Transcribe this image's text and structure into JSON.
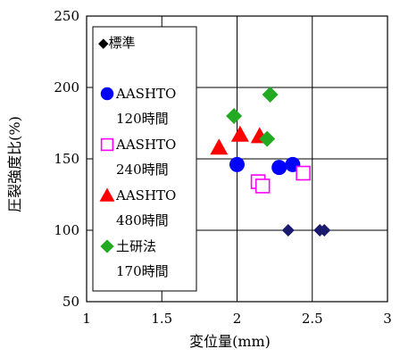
{
  "chart_data": {
    "type": "scatter",
    "title": "",
    "xlabel": "変位量(mm)",
    "ylabel": "圧裂強度比(%)",
    "xlim": [
      1,
      3
    ],
    "ylim": [
      50,
      250
    ],
    "xticks": [
      "1",
      "1.5",
      "2",
      "2.5",
      "3"
    ],
    "yticks": [
      "50",
      "100",
      "150",
      "200",
      "250"
    ],
    "grid": true,
    "legend_position": "left-inside",
    "series": [
      {
        "name": "標準",
        "legend_lines": [
          "◆標準"
        ],
        "marker": "diamond-small",
        "color": "#1a1a6e",
        "points": [
          [
            2.34,
            100
          ],
          [
            2.55,
            100
          ],
          [
            2.58,
            100
          ]
        ]
      },
      {
        "name": "AASHTO 120時間",
        "legend_lines": [
          "AASHTO",
          "120時間"
        ],
        "marker": "circle",
        "color": "#0000ff",
        "points": [
          [
            2.0,
            146
          ],
          [
            2.28,
            144
          ],
          [
            2.37,
            146
          ]
        ]
      },
      {
        "name": "AASHTO 240時間",
        "legend_lines": [
          "AASHTO",
          "240時間"
        ],
        "marker": "square-open",
        "color": "#ff00ff",
        "points": [
          [
            2.14,
            134
          ],
          [
            2.17,
            131
          ],
          [
            2.44,
            140
          ]
        ]
      },
      {
        "name": "AASHTO 480時間",
        "legend_lines": [
          "AASHTO",
          "480時間"
        ],
        "marker": "triangle",
        "color": "#ff0000",
        "points": [
          [
            1.88,
            158
          ],
          [
            2.02,
            167
          ],
          [
            2.15,
            166
          ]
        ]
      },
      {
        "name": "土研法 170時間",
        "legend_lines": [
          "土研法",
          "170時間"
        ],
        "marker": "diamond",
        "color": "#22aa22",
        "points": [
          [
            1.98,
            180
          ],
          [
            2.2,
            164
          ],
          [
            2.22,
            195
          ]
        ]
      }
    ]
  }
}
